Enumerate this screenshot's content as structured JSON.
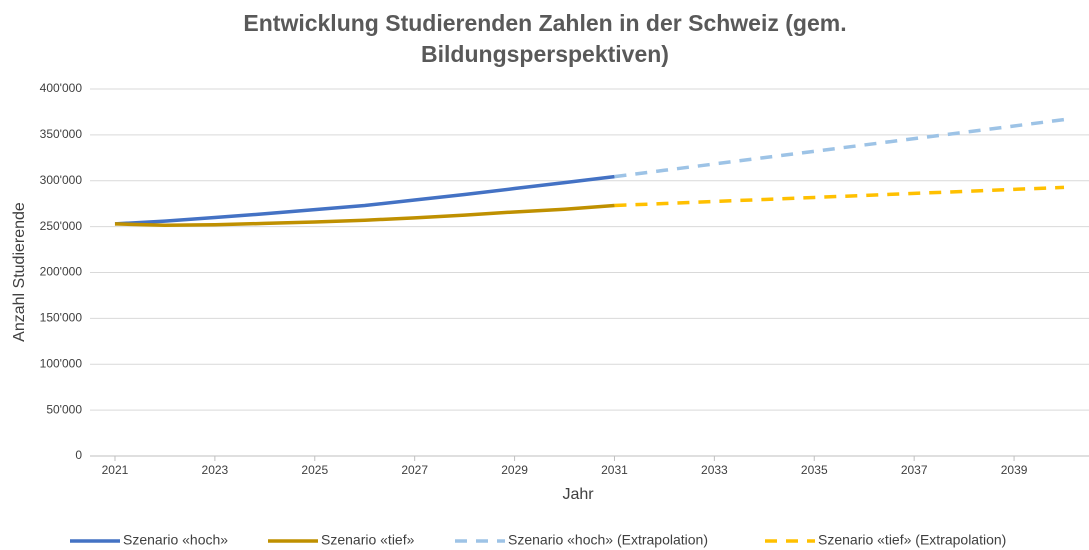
{
  "chart_data": {
    "type": "line",
    "title": [
      "Entwicklung Studierenden Zahlen in der Schweiz (gem.",
      "Bildungsperspektiven)"
    ],
    "xlabel": "Jahr",
    "ylabel": "Anzahl Studierende",
    "xlim": [
      2020.5,
      2040.5
    ],
    "xticks": [
      2021,
      2023,
      2025,
      2027,
      2029,
      2031,
      2033,
      2035,
      2037,
      2039
    ],
    "ylim": [
      0,
      400000
    ],
    "yticks": [
      0,
      {
        "value": 50000,
        "label": "50'000"
      },
      {
        "value": 100000,
        "label": "100'000"
      },
      {
        "value": 150000,
        "label": "150'000"
      },
      {
        "value": 200000,
        "label": "200'000"
      },
      {
        "value": 250000,
        "label": "250'000"
      },
      {
        "value": 300000,
        "label": "300'000"
      },
      {
        "value": 350000,
        "label": "350'000"
      },
      {
        "value": 400000,
        "label": "400'000"
      }
    ],
    "grid": true,
    "legend": "bottom",
    "series": [
      {
        "name": "Szenario «hoch»",
        "color": "#4472c4",
        "dashed": false,
        "x": [
          2021,
          2022,
          2023,
          2024,
          2025,
          2026,
          2027,
          2028,
          2029,
          2030,
          2031
        ],
        "values": [
          253000,
          256000,
          260000,
          264000,
          268500,
          273000,
          279000,
          285000,
          291500,
          298000,
          304500
        ]
      },
      {
        "name": "Szenario «tief»",
        "color": "#bf9000",
        "dashed": false,
        "x": [
          2021,
          2022,
          2023,
          2024,
          2025,
          2026,
          2027,
          2028,
          2029,
          2030,
          2031
        ],
        "values": [
          253000,
          251500,
          252000,
          253500,
          255000,
          257000,
          259500,
          262500,
          266000,
          269000,
          273000
        ]
      },
      {
        "name": "Szenario «hoch» (Extrapolation)",
        "color": "#9dc3e6",
        "dashed": true,
        "x": [
          2031,
          2032,
          2033,
          2034,
          2035,
          2036,
          2037,
          2038,
          2039,
          2040
        ],
        "values": [
          304500,
          311400,
          318300,
          325200,
          332100,
          339000,
          345900,
          352800,
          359700,
          366600
        ]
      },
      {
        "name": "Szenario «tief» (Extrapolation)",
        "color": "#ffc000",
        "dashed": true,
        "x": [
          2031,
          2032,
          2033,
          2034,
          2035,
          2036,
          2037,
          2038,
          2039,
          2040
        ],
        "values": [
          273000,
          275200,
          277400,
          279600,
          281800,
          284000,
          286200,
          288400,
          290600,
          292800
        ]
      }
    ]
  }
}
